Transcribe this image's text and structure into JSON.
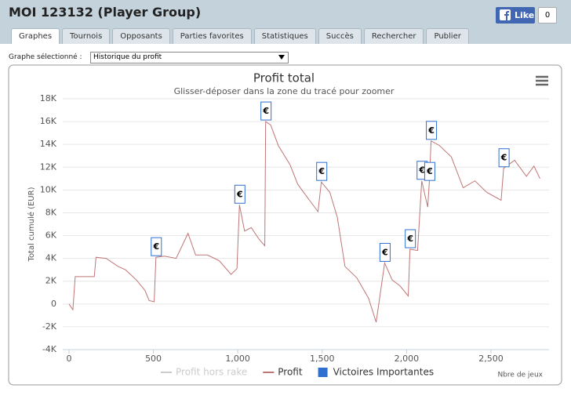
{
  "header": {
    "title": "MOI 123132 (Player Group)",
    "like_label": "Like",
    "like_count": "0"
  },
  "tabs": [
    "Graphes",
    "Tournois",
    "Opposants",
    "Parties favorites",
    "Statistiques",
    "Succès",
    "Rechercher",
    "Publier"
  ],
  "active_tab": 0,
  "selector": {
    "label": "Graphe sélectionné :",
    "value": "Historique du profit"
  },
  "chart_data": {
    "type": "line",
    "title": "Profit total",
    "subtitle": "Glisser-déposer dans la zone du tracé pour zoomer",
    "y_label": "Total cumulé (EUR)",
    "x_label": "Nbre de jeux",
    "xlim": [
      -37,
      2844
    ],
    "ylim": [
      -4000,
      18000
    ],
    "xticks": [
      0,
      500,
      {
        "value": 1000,
        "label": "1,000"
      },
      {
        "value": 1500,
        "label": "1,500"
      },
      {
        "value": 2000,
        "label": "2,000"
      },
      {
        "value": 2500,
        "label": "2,500"
      }
    ],
    "yticks": [
      {
        "value": -4000,
        "label": "-4K"
      },
      {
        "value": -2000,
        "label": "-2K"
      },
      0,
      {
        "value": 2000,
        "label": "2K"
      },
      {
        "value": 4000,
        "label": "4K"
      },
      {
        "value": 6000,
        "label": "6K"
      },
      {
        "value": 8000,
        "label": "8K"
      },
      {
        "value": 10000,
        "label": "10K"
      },
      {
        "value": 12000,
        "label": "12K"
      },
      {
        "value": 14000,
        "label": "14K"
      },
      {
        "value": 16000,
        "label": "16K"
      },
      {
        "value": 18000,
        "label": "18K"
      }
    ],
    "grid": true,
    "series": [
      {
        "name": "Profit hors rake",
        "color": "#cccccc",
        "visible": false
      },
      {
        "name": "Profit",
        "color": "#c07575",
        "x": [
          0,
          23,
          37,
          150,
          160,
          220,
          290,
          335,
          400,
          450,
          475,
          505,
          515,
          565,
          635,
          705,
          750,
          820,
          890,
          960,
          995,
          1010,
          1040,
          1080,
          1125,
          1160,
          1165,
          1195,
          1240,
          1310,
          1355,
          1425,
          1475,
          1495,
          1545,
          1590,
          1635,
          1705,
          1775,
          1820,
          1870,
          1915,
          1960,
          2010,
          2020,
          2065,
          2090,
          2125,
          2135,
          2145,
          2195,
          2265,
          2335,
          2405,
          2475,
          2560,
          2575,
          2640,
          2710,
          2755,
          2790
        ],
        "values": [
          0,
          -500,
          2400,
          2400,
          4100,
          4000,
          3300,
          3000,
          2100,
          1200,
          300,
          200,
          4100,
          4200,
          4000,
          6200,
          4300,
          4300,
          3800,
          2600,
          3100,
          8700,
          6400,
          6700,
          5700,
          5100,
          16000,
          15700,
          13900,
          12200,
          10500,
          9100,
          8100,
          10700,
          9800,
          7600,
          3300,
          2300,
          500,
          -1600,
          3600,
          2100,
          1600,
          700,
          4800,
          4700,
          10800,
          8500,
          10700,
          14300,
          13900,
          12900,
          10200,
          10800,
          9800,
          9100,
          11900,
          12600,
          11200,
          12100,
          11000
        ]
      },
      {
        "name": "Victoires Importantes",
        "color": "#2f6fd0",
        "type": "flags",
        "flag_label": "€",
        "x": [
          515,
          1010,
          1165,
          1495,
          1870,
          2020,
          2090,
          2135,
          2145,
          2575
        ],
        "values": [
          4100,
          8700,
          16000,
          10700,
          3600,
          4800,
          10800,
          10700,
          14300,
          11900
        ]
      }
    ]
  }
}
